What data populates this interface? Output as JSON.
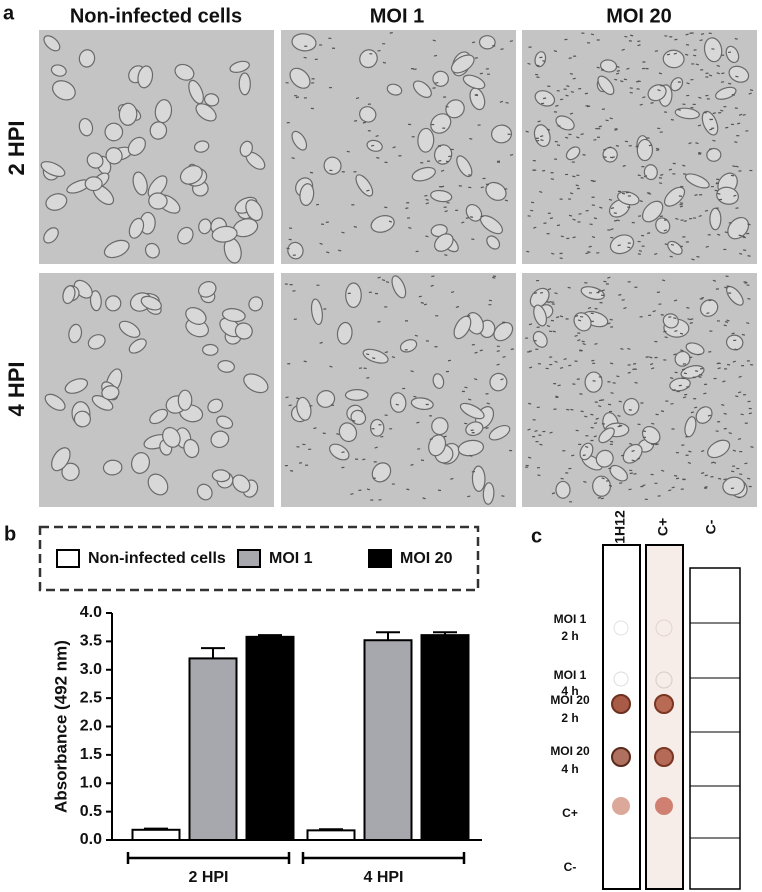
{
  "panel_a": {
    "label": "a",
    "columns": [
      "Non-infected cells",
      "MOI 1",
      "MOI 20"
    ],
    "rows": [
      "2 HPI",
      "4 HPI"
    ]
  },
  "chart_data": {
    "type": "bar",
    "label": "b",
    "y_label": "Absorbance (492 nm)",
    "categories": [
      "2 HPI",
      "4 HPI"
    ],
    "series": [
      {
        "name": "Non-infected cells",
        "color": "#ffffff",
        "values": [
          0.18,
          0.17
        ],
        "errors": [
          0.02,
          0.02
        ]
      },
      {
        "name": "MOI 1",
        "color": "#a7a7ae",
        "values": [
          3.2,
          3.52
        ],
        "errors": [
          0.18,
          0.14
        ]
      },
      {
        "name": "MOI 20",
        "color": "#000000",
        "values": [
          3.58,
          3.61
        ],
        "errors": [
          0.03,
          0.05
        ]
      }
    ],
    "ylim": [
      0,
      4
    ],
    "yticks": [
      {
        "value": 0,
        "label": "0.0"
      },
      0.5,
      {
        "value": 1,
        "label": "1.0"
      },
      1.5,
      {
        "value": 2,
        "label": "2.0"
      },
      2.5,
      {
        "value": 3,
        "label": "3.0"
      },
      3.5,
      {
        "value": 4,
        "label": "4.0"
      }
    ]
  },
  "panel_c": {
    "label": "c",
    "columns": [
      "1H12",
      "C+",
      "C-"
    ],
    "rows": [
      [
        "MOI 1",
        "2 h"
      ],
      [
        "MOI 1",
        "4 h"
      ],
      [
        "MOI 20",
        "2 h"
      ],
      [
        "MOI 20",
        "4 h"
      ],
      [
        "C+"
      ],
      [
        "C-"
      ]
    ]
  }
}
